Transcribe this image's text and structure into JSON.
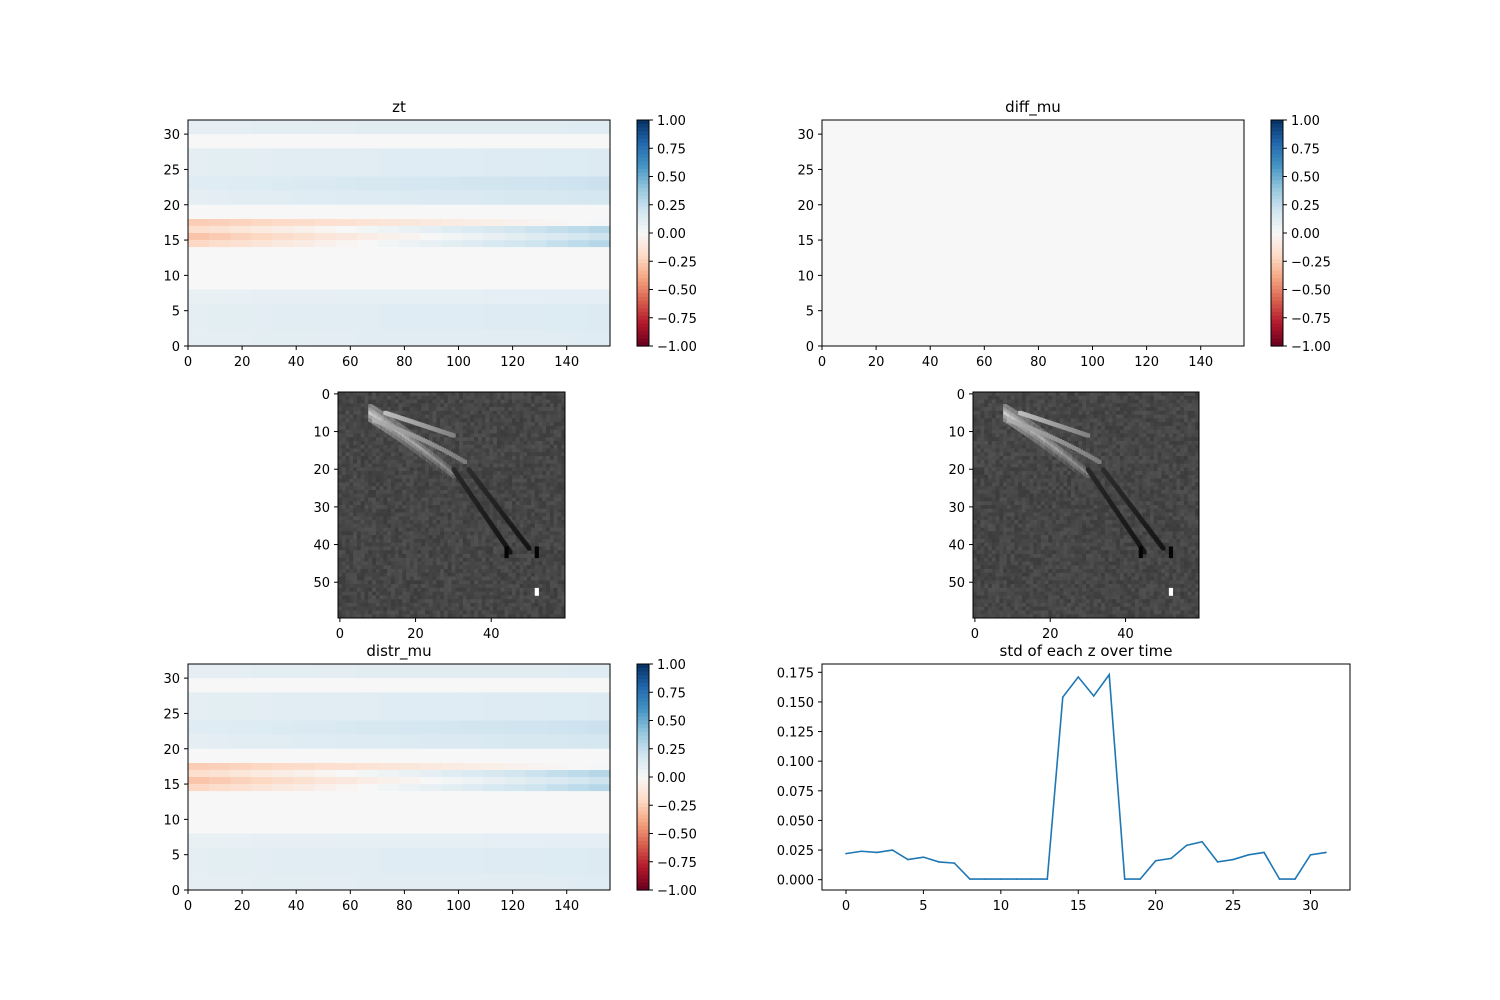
{
  "chart_data": [
    {
      "type": "heatmap",
      "title": "zt",
      "xlim": [
        0,
        156
      ],
      "ylim": [
        0,
        32
      ],
      "xticks": [
        "0",
        "20",
        "40",
        "60",
        "80",
        "100",
        "120",
        "140"
      ],
      "yticks": [
        "0",
        "5",
        "10",
        "15",
        "20",
        "25",
        "30"
      ],
      "colormap": "RdBu",
      "clim": [
        -1.0,
        1.0
      ],
      "colorbar_ticks": [
        "1.00",
        "0.75",
        "0.50",
        "0.25",
        "0.00",
        "−0.25",
        "−0.50",
        "−0.75",
        "−1.00"
      ],
      "row_values": [
        {
          "rows": [
            0,
            1
          ],
          "start": 0.1,
          "end": 0.12
        },
        {
          "rows": [
            2,
            5
          ],
          "start": 0.1,
          "end": 0.14
        },
        {
          "rows": [
            6,
            7
          ],
          "start": 0.08,
          "end": 0.1
        },
        {
          "rows": [
            8,
            13
          ],
          "start": 0.0,
          "end": 0.0
        },
        {
          "rows": [
            14,
            14
          ],
          "start": -0.22,
          "end": 0.3
        },
        {
          "rows": [
            15,
            15
          ],
          "start": -0.3,
          "end": 0.22
        },
        {
          "rows": [
            16,
            16
          ],
          "start": -0.18,
          "end": 0.3
        },
        {
          "rows": [
            17,
            17
          ],
          "start": -0.26,
          "end": 0.02
        },
        {
          "rows": [
            18,
            19
          ],
          "start": 0.0,
          "end": 0.0
        },
        {
          "rows": [
            20,
            21
          ],
          "start": 0.1,
          "end": 0.18
        },
        {
          "rows": [
            22,
            23
          ],
          "start": 0.12,
          "end": 0.22
        },
        {
          "rows": [
            24,
            27
          ],
          "start": 0.1,
          "end": 0.14
        },
        {
          "rows": [
            28,
            29
          ],
          "start": 0.0,
          "end": 0.0
        },
        {
          "rows": [
            30,
            31
          ],
          "start": 0.1,
          "end": 0.12
        }
      ]
    },
    {
      "type": "heatmap",
      "title": "diff_mu",
      "xlim": [
        0,
        156
      ],
      "ylim": [
        0,
        32
      ],
      "xticks": [
        "0",
        "20",
        "40",
        "60",
        "80",
        "100",
        "120",
        "140"
      ],
      "yticks": [
        "0",
        "5",
        "10",
        "15",
        "20",
        "25",
        "30"
      ],
      "colormap": "RdBu",
      "clim": [
        -1.0,
        1.0
      ],
      "colorbar_ticks": [
        "1.00",
        "0.75",
        "0.50",
        "0.25",
        "0.00",
        "−0.25",
        "−0.50",
        "−0.75",
        "−1.00"
      ],
      "row_values": [
        {
          "rows": [
            0,
            31
          ],
          "start": 0.0,
          "end": 0.0
        }
      ]
    },
    {
      "type": "heatmap",
      "title": "",
      "grayscale_image": true,
      "xlim": [
        0,
        60
      ],
      "ylim": [
        60,
        0
      ],
      "xticks": [
        "0",
        "20",
        "40"
      ],
      "yticks": [
        "0",
        "10",
        "20",
        "30",
        "40",
        "50"
      ]
    },
    {
      "type": "heatmap",
      "title": "",
      "grayscale_image": true,
      "xlim": [
        0,
        60
      ],
      "ylim": [
        60,
        0
      ],
      "xticks": [
        "0",
        "20",
        "40"
      ],
      "yticks": [
        "0",
        "10",
        "20",
        "30",
        "40",
        "50"
      ]
    },
    {
      "type": "heatmap",
      "title": "distr_mu",
      "xlim": [
        0,
        156
      ],
      "ylim": [
        0,
        32
      ],
      "xticks": [
        "0",
        "20",
        "40",
        "60",
        "80",
        "100",
        "120",
        "140"
      ],
      "yticks": [
        "0",
        "5",
        "10",
        "15",
        "20",
        "25",
        "30"
      ],
      "colormap": "RdBu",
      "clim": [
        -1.0,
        1.0
      ],
      "colorbar_ticks": [
        "1.00",
        "0.75",
        "0.50",
        "0.25",
        "0.00",
        "−0.25",
        "−0.50",
        "−0.75",
        "−1.00"
      ],
      "row_values": [
        {
          "rows": [
            0,
            1
          ],
          "start": 0.1,
          "end": 0.12
        },
        {
          "rows": [
            2,
            5
          ],
          "start": 0.1,
          "end": 0.14
        },
        {
          "rows": [
            6,
            7
          ],
          "start": 0.08,
          "end": 0.1
        },
        {
          "rows": [
            8,
            13
          ],
          "start": 0.0,
          "end": 0.0
        },
        {
          "rows": [
            14,
            14
          ],
          "start": -0.22,
          "end": 0.3
        },
        {
          "rows": [
            15,
            15
          ],
          "start": -0.3,
          "end": 0.22
        },
        {
          "rows": [
            16,
            16
          ],
          "start": -0.18,
          "end": 0.3
        },
        {
          "rows": [
            17,
            17
          ],
          "start": -0.26,
          "end": 0.02
        },
        {
          "rows": [
            18,
            19
          ],
          "start": 0.0,
          "end": 0.0
        },
        {
          "rows": [
            20,
            21
          ],
          "start": 0.1,
          "end": 0.18
        },
        {
          "rows": [
            22,
            23
          ],
          "start": 0.12,
          "end": 0.22
        },
        {
          "rows": [
            24,
            27
          ],
          "start": 0.1,
          "end": 0.14
        },
        {
          "rows": [
            28,
            29
          ],
          "start": 0.0,
          "end": 0.0
        },
        {
          "rows": [
            30,
            31
          ],
          "start": 0.1,
          "end": 0.12
        }
      ]
    },
    {
      "type": "line",
      "title": "std of each z over time",
      "xlim": [
        -1.55,
        32.55
      ],
      "ylim": [
        -0.0087,
        0.182
      ],
      "xticks": [
        "0",
        "5",
        "10",
        "15",
        "20",
        "25",
        "30"
      ],
      "yticks": [
        "0.000",
        "0.025",
        "0.050",
        "0.075",
        "0.100",
        "0.125",
        "0.150",
        "0.175"
      ],
      "color": "#1f77b4",
      "x": [
        0,
        1,
        2,
        3,
        4,
        5,
        6,
        7,
        8,
        9,
        10,
        11,
        12,
        13,
        14,
        15,
        16,
        17,
        18,
        19,
        20,
        21,
        22,
        23,
        24,
        25,
        26,
        27,
        28,
        29,
        30,
        31
      ],
      "y": [
        0.022,
        0.024,
        0.023,
        0.025,
        0.017,
        0.019,
        0.015,
        0.014,
        0.0005,
        0.0005,
        0.0005,
        0.0005,
        0.0005,
        0.0005,
        0.154,
        0.171,
        0.155,
        0.173,
        0.0005,
        0.0005,
        0.016,
        0.018,
        0.029,
        0.032,
        0.015,
        0.017,
        0.021,
        0.023,
        0.0005,
        0.0005,
        0.021,
        0.023
      ]
    }
  ]
}
